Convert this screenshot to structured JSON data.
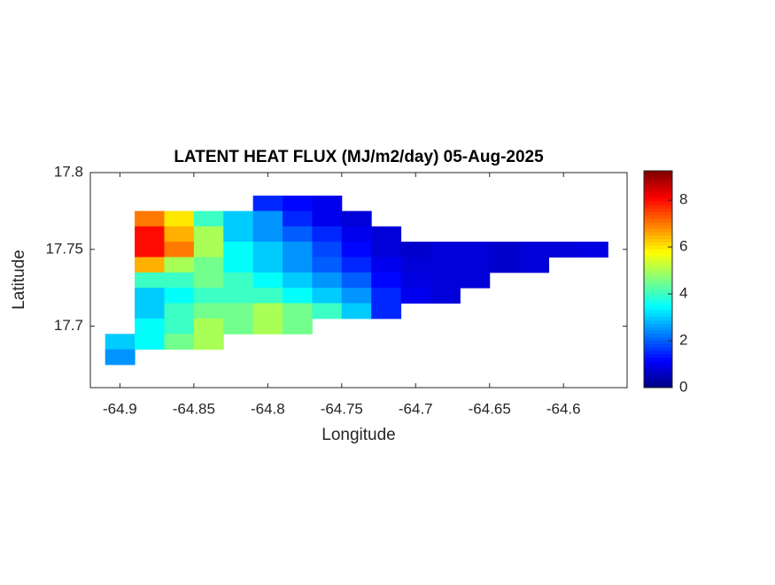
{
  "chart_data": {
    "type": "heatmap",
    "title": "LATENT HEAT FLUX (MJ/m2/day) 05-Aug-2025",
    "x_label": "Longitude",
    "y_label": "Latitude",
    "xlim": [
      -64.92,
      -64.557
    ],
    "ylim": [
      17.66,
      17.8
    ],
    "xticks": [
      -64.9,
      -64.85,
      -64.8,
      -64.75,
      -64.7,
      -64.65,
      -64.6
    ],
    "yticks": [
      17.7,
      17.75,
      17.8
    ],
    "clim": [
      0,
      9.25
    ],
    "cticks": [
      0,
      2,
      4,
      6,
      8
    ],
    "colormap": "jet",
    "x": [
      -64.9,
      -64.88,
      -64.86,
      -64.84,
      -64.82,
      -64.8,
      -64.78,
      -64.76,
      -64.74,
      -64.72,
      -64.7,
      -64.68,
      -64.66,
      -64.64,
      -64.62,
      -64.6,
      -64.58,
      -64.56
    ],
    "y": [
      17.78,
      17.77,
      17.76,
      17.75,
      17.74,
      17.73,
      17.72,
      17.71,
      17.7,
      17.69,
      17.68
    ],
    "z": [
      [
        null,
        null,
        null,
        null,
        null,
        1.5,
        1.2,
        1.0,
        null,
        null,
        null,
        null,
        null,
        null,
        null,
        null,
        null,
        null
      ],
      [
        null,
        7,
        6,
        4,
        3,
        2.5,
        1.5,
        1,
        0.8,
        null,
        null,
        null,
        null,
        null,
        null,
        null,
        null,
        null
      ],
      [
        null,
        8,
        6.5,
        5,
        3,
        2.5,
        2,
        1.5,
        1,
        0.8,
        null,
        null,
        null,
        null,
        null,
        null,
        null,
        null
      ],
      [
        null,
        8,
        7,
        5,
        3.5,
        3,
        2.5,
        1.8,
        1.2,
        0.8,
        0.7,
        0.8,
        0.8,
        0.7,
        0.8,
        0.8,
        0.9,
        null
      ],
      [
        null,
        6.5,
        5,
        4.5,
        3.5,
        3,
        2.5,
        2,
        1.5,
        1,
        0.8,
        0.8,
        0.8,
        0.7,
        0.8,
        null,
        null,
        null
      ],
      [
        null,
        4,
        4,
        4.5,
        4,
        3.5,
        3,
        2.5,
        2,
        1.2,
        0.9,
        0.8,
        0.8,
        null,
        null,
        null,
        null,
        null
      ],
      [
        null,
        3,
        3.5,
        4,
        4,
        4,
        3.5,
        3,
        2.5,
        1.5,
        1,
        0.8,
        null,
        null,
        null,
        null,
        null,
        null
      ],
      [
        null,
        3,
        4,
        4.5,
        4.5,
        5,
        4.5,
        4,
        3,
        1.5,
        null,
        null,
        null,
        null,
        null,
        null,
        null,
        null
      ],
      [
        null,
        3.5,
        4,
        5,
        4.5,
        5,
        4.5,
        null,
        null,
        null,
        null,
        null,
        null,
        null,
        null,
        null,
        null,
        null
      ],
      [
        3,
        3.5,
        4.5,
        5,
        null,
        null,
        null,
        null,
        null,
        null,
        null,
        null,
        null,
        null,
        null,
        null,
        null,
        null
      ],
      [
        2.5,
        null,
        null,
        null,
        null,
        null,
        null,
        null,
        null,
        null,
        null,
        null,
        null,
        null,
        null,
        null,
        null,
        null
      ]
    ]
  }
}
